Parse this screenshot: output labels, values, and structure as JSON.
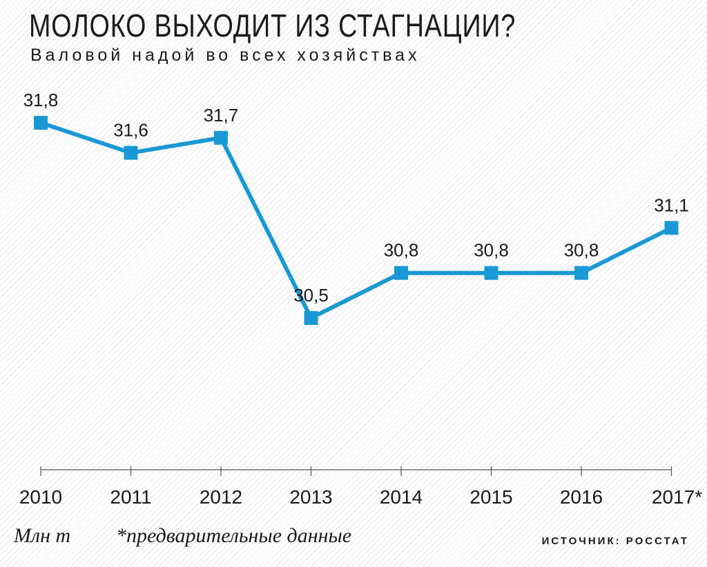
{
  "chart_data": {
    "type": "line",
    "title": "МОЛОКО ВЫХОДИТ ИЗ СТАГНАЦИИ?",
    "subtitle": "Валовой надой во всех хозяйствах",
    "categories": [
      "2010",
      "2011",
      "2012",
      "2013",
      "2014",
      "2015",
      "2016",
      "2017*"
    ],
    "series": [
      {
        "values": [
          31.8,
          31.6,
          31.7,
          30.5,
          30.8,
          30.8,
          30.8,
          31.1
        ],
        "labels": [
          "31,8",
          "31,6",
          "31,7",
          "30,5",
          "30,8",
          "30,8",
          "30,8",
          "31,1"
        ],
        "color": "#1a98d5"
      }
    ],
    "unit": "Млн т",
    "note": "*предварительные данные",
    "source": "ИСТОЧНИК: РОССТАТ",
    "grid": false,
    "legend": "none"
  }
}
